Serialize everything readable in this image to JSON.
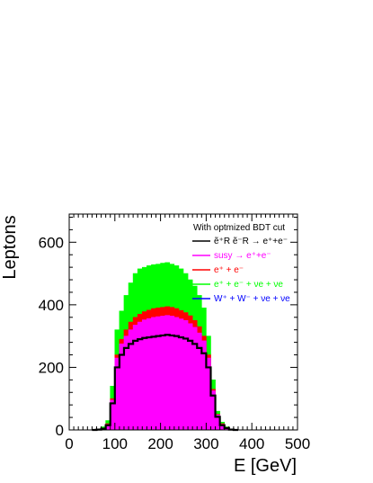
{
  "chart_data": {
    "type": "area",
    "title": "",
    "xlabel": "E [GeV]",
    "ylabel": "Leptons",
    "xlim": [
      0,
      500
    ],
    "ylim": [
      0,
      690
    ],
    "xticks": [
      0,
      100,
      200,
      300,
      400,
      500
    ],
    "yticks": [
      0,
      200,
      400,
      600
    ],
    "grid": false,
    "legend": {
      "placement": "top-right",
      "header": "With optmized BDT cut",
      "entries": [
        {
          "label": "ẽ⁺R ẽ⁻R → e⁺+e⁻",
          "color": "#000000"
        },
        {
          "label": "susy → e⁺+e⁻",
          "color": "#ff00ff"
        },
        {
          "label": "e⁺ + e⁻",
          "color": "#ff0000"
        },
        {
          "label": "e⁺ + e⁻ + νe + νe",
          "color": "#00ff00"
        },
        {
          "label": "W⁺ + W⁻ + νe + νe",
          "color": "#0000ff"
        }
      ]
    },
    "x": [
      50,
      60,
      70,
      80,
      90,
      100,
      110,
      120,
      130,
      140,
      150,
      160,
      170,
      180,
      190,
      200,
      210,
      220,
      230,
      240,
      250,
      260,
      270,
      280,
      290,
      300,
      310,
      320,
      330,
      340,
      350,
      360
    ],
    "series": [
      {
        "name": "e⁺ + e⁻ + νe + νe",
        "color": "#00ff00",
        "values": [
          0,
          2,
          10,
          30,
          140,
          320,
          380,
          430,
          470,
          500,
          515,
          520,
          525,
          528,
          530,
          533,
          535,
          530,
          525,
          515,
          500,
          480,
          460,
          430,
          390,
          300,
          160,
          60,
          25,
          10,
          3,
          0
        ]
      },
      {
        "name": "e⁺ + e⁻",
        "color": "#ff0000",
        "values": [
          0,
          1,
          6,
          20,
          100,
          240,
          290,
          320,
          345,
          360,
          370,
          378,
          383,
          388,
          390,
          392,
          394,
          392,
          388,
          382,
          375,
          365,
          350,
          330,
          300,
          240,
          130,
          50,
          20,
          8,
          2,
          0
        ]
      },
      {
        "name": "susy → e⁺+e⁻",
        "color": "#ff00ff",
        "values": [
          0,
          1,
          5,
          18,
          95,
          230,
          275,
          300,
          320,
          335,
          345,
          352,
          356,
          360,
          362,
          364,
          366,
          364,
          360,
          355,
          350,
          340,
          328,
          310,
          285,
          230,
          125,
          48,
          18,
          7,
          2,
          0
        ]
      },
      {
        "name": "W⁺ + W⁻ + νe + νe",
        "color": "#0000ff",
        "values": [
          0,
          1,
          4,
          15,
          85,
          200,
          240,
          262,
          275,
          285,
          290,
          294,
          296,
          298,
          300,
          302,
          304,
          302,
          300,
          296,
          292,
          285,
          275,
          262,
          245,
          200,
          110,
          42,
          15,
          6,
          1,
          0
        ]
      },
      {
        "name": "ẽ⁺R ẽ⁻R → e⁺+e⁻",
        "color": "#000000",
        "values": [
          0,
          1,
          4,
          15,
          85,
          200,
          240,
          262,
          275,
          285,
          290,
          294,
          296,
          298,
          300,
          302,
          304,
          302,
          300,
          296,
          292,
          285,
          275,
          262,
          245,
          200,
          110,
          42,
          15,
          6,
          1,
          0
        ]
      }
    ]
  }
}
